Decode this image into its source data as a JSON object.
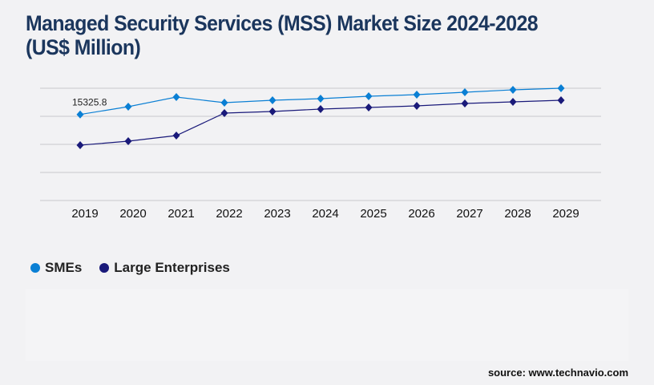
{
  "title": "Managed Security Services (MSS) Market Size 2024-2028 (US$ Million)",
  "source": "source: www.technavio.com",
  "colors": {
    "title": "#1b365d",
    "smes": "#0a7fd4",
    "large": "#1a1a7a",
    "grid": "#c8c8cc"
  },
  "chart_data": {
    "type": "line",
    "title": "Managed Security Services (MSS) Market Size 2024-2028 (US$ Million)",
    "x": [
      "2019",
      "2020",
      "2021",
      "2022",
      "2023",
      "2024",
      "2025",
      "2026",
      "2027",
      "2028",
      "2029"
    ],
    "ylim": [
      0,
      20000
    ],
    "grid": true,
    "y_axis_labels_shown": false,
    "legend_position": "bottom-left",
    "series": [
      {
        "name": "SMEs",
        "color": "#0a7fd4",
        "marker": "diamond",
        "values": [
          15325.8,
          16714,
          18429,
          17429,
          17857,
          18143,
          18571,
          18857,
          19286,
          19714,
          20000
        ]
      },
      {
        "name": "Large Enterprises",
        "color": "#1a1a7a",
        "marker": "diamond",
        "values": [
          9857,
          10571,
          11571,
          15571,
          15857,
          16286,
          16571,
          16857,
          17286,
          17571,
          17857
        ]
      }
    ],
    "annotations": [
      {
        "series": "SMEs",
        "x": "2019",
        "text": "15325.8"
      }
    ]
  }
}
